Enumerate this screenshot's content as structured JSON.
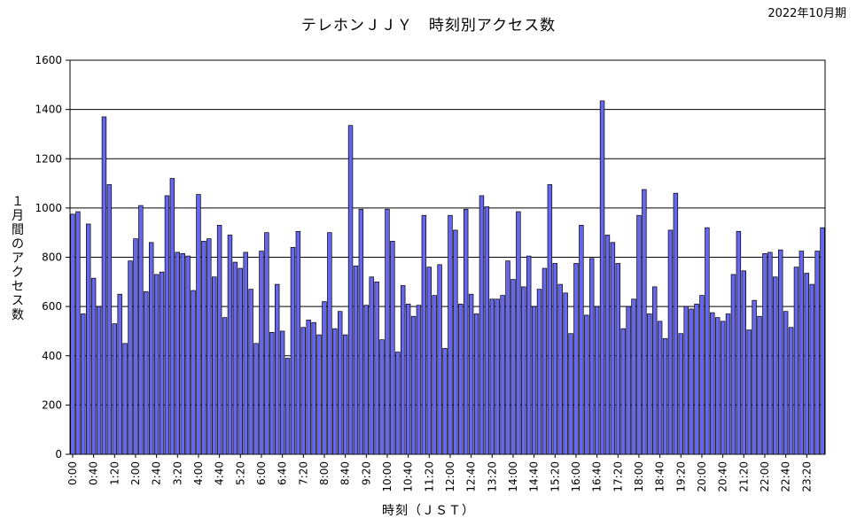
{
  "chart_data": {
    "type": "bar",
    "title": "テレホンＪＪＹ　時刻別アクセス数",
    "period": "2022年10月期",
    "xlabel": "時刻（ＪＳＴ）",
    "ylabel": "１月間のアクセス数",
    "ylim": [
      0,
      1600
    ],
    "yticks": [
      0,
      200,
      400,
      600,
      800,
      1000,
      1200,
      1400,
      1600
    ],
    "grid": "horizontal",
    "bar_color": "#6666ee",
    "x_tick_labels": [
      "0:00",
      "0:40",
      "1:20",
      "2:00",
      "2:40",
      "3:20",
      "4:00",
      "4:40",
      "5:20",
      "6:00",
      "6:40",
      "7:20",
      "8:00",
      "8:40",
      "9:20",
      "10:00",
      "10:40",
      "11:20",
      "12:00",
      "12:40",
      "13:20",
      "14:00",
      "14:40",
      "15:20",
      "16:00",
      "16:40",
      "17:20",
      "18:00",
      "18:40",
      "19:20",
      "20:00",
      "20:40",
      "21:20",
      "22:00",
      "22:40",
      "23:20"
    ],
    "values": [
      975,
      985,
      570,
      935,
      715,
      600,
      1370,
      1095,
      530,
      650,
      450,
      785,
      875,
      1010,
      660,
      860,
      730,
      740,
      1050,
      1120,
      820,
      815,
      805,
      665,
      1055,
      865,
      875,
      720,
      930,
      555,
      890,
      780,
      755,
      820,
      670,
      450,
      825,
      900,
      495,
      690,
      500,
      390,
      840,
      905,
      515,
      545,
      535,
      485,
      620,
      900,
      510,
      580,
      485,
      1335,
      765,
      995,
      605,
      720,
      700,
      465,
      995,
      865,
      415,
      685,
      610,
      560,
      605,
      970,
      760,
      645,
      770,
      430,
      970,
      910,
      610,
      995,
      650,
      570,
      1050,
      1005,
      630,
      630,
      645,
      785,
      710,
      985,
      680,
      805,
      600,
      670,
      755,
      1095,
      775,
      690,
      655,
      490,
      775,
      930,
      565,
      795,
      600,
      1435,
      890,
      860,
      775,
      510,
      600,
      630,
      970,
      1075,
      570,
      680,
      540,
      470,
      910,
      1060,
      490,
      600,
      590,
      610,
      645,
      920,
      575,
      555,
      540,
      570,
      730,
      905,
      745,
      505,
      625,
      560,
      815,
      820,
      720,
      830,
      580,
      515,
      760,
      825,
      735,
      690,
      825,
      920
    ]
  }
}
